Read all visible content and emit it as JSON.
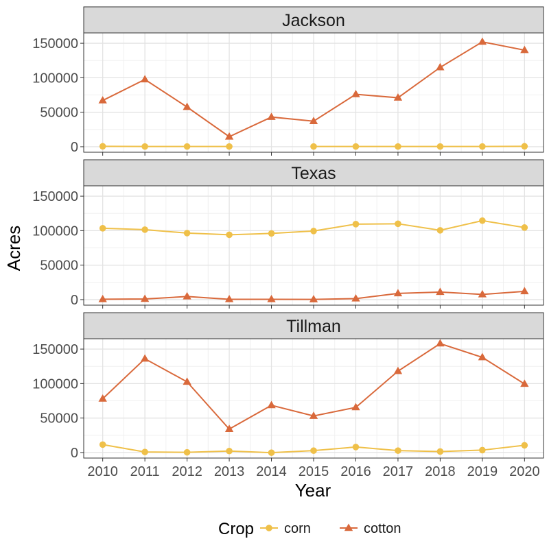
{
  "chart_data": {
    "type": "line",
    "xlabel": "Year",
    "ylabel": "Acres",
    "x": [
      2010,
      2011,
      2012,
      2013,
      2014,
      2015,
      2016,
      2017,
      2018,
      2019,
      2020
    ],
    "ylim": [
      -8000,
      165000
    ],
    "yticks": [
      0,
      50000,
      100000,
      150000
    ],
    "grid": true,
    "legend": {
      "title": "Crop",
      "position": "bottom",
      "entries": [
        "corn",
        "cotton"
      ]
    },
    "facets": [
      {
        "title": "Jackson",
        "series": [
          {
            "name": "corn",
            "values": [
              600,
              300,
              300,
              300,
              null,
              300,
              300,
              300,
              300,
              300,
              600
            ]
          },
          {
            "name": "cotton",
            "values": [
              67000,
              97500,
              57500,
              14500,
              43000,
              37000,
              76000,
              71000,
              115000,
              152000,
              140000
            ]
          }
        ]
      },
      {
        "title": "Texas",
        "series": [
          {
            "name": "corn",
            "values": [
              103500,
              101500,
              96500,
              94000,
              96000,
              99500,
              109500,
              110000,
              100500,
              114500,
              104500
            ]
          },
          {
            "name": "cotton",
            "values": [
              600,
              900,
              4500,
              500,
              500,
              300,
              1500,
              9000,
              11000,
              7500,
              12000
            ]
          }
        ]
      },
      {
        "title": "Tillman",
        "series": [
          {
            "name": "corn",
            "values": [
              11500,
              800,
              300,
              2200,
              -200,
              2800,
              8000,
              2800,
              1500,
              3500,
              10500
            ]
          },
          {
            "name": "cotton",
            "values": [
              78000,
              136000,
              102500,
              34000,
              68500,
              53000,
              65500,
              118000,
              158000,
              138000,
              99500
            ]
          }
        ]
      }
    ],
    "colors": {
      "corn": "#EFC049",
      "cotton": "#D9693B"
    },
    "markers": {
      "corn": "circle",
      "cotton": "triangle"
    }
  }
}
